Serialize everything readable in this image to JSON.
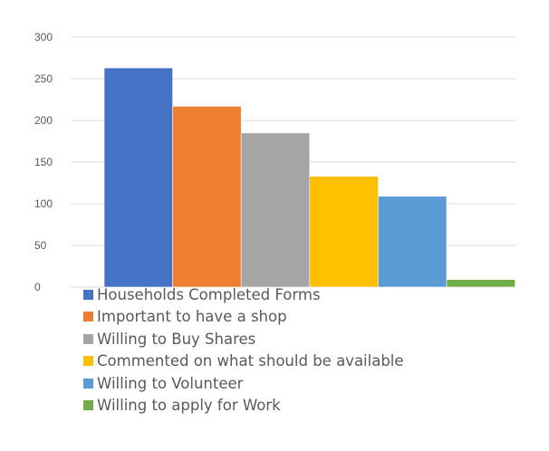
{
  "chart_data": {
    "type": "bar",
    "title": "",
    "xlabel": "",
    "ylabel": "",
    "ylim": [
      0,
      300
    ],
    "yticks": [
      0,
      50,
      100,
      150,
      200,
      250,
      300
    ],
    "grid": true,
    "legend_position": "bottom",
    "series": [
      {
        "name": "Households Completed Forms",
        "value": 263,
        "color": "#4472C4"
      },
      {
        "name": "Important to have a shop",
        "value": 217,
        "color": "#ED7D31"
      },
      {
        "name": "Willing to Buy Shares",
        "value": 185,
        "color": "#A5A5A5"
      },
      {
        "name": "Commented on what should be available",
        "value": 133,
        "color": "#FFC000"
      },
      {
        "name": "Willing to Volunteer",
        "value": 109,
        "color": "#5B9BD5"
      },
      {
        "name": "Willing to apply for Work",
        "value": 9,
        "color": "#70AD47"
      }
    ]
  }
}
